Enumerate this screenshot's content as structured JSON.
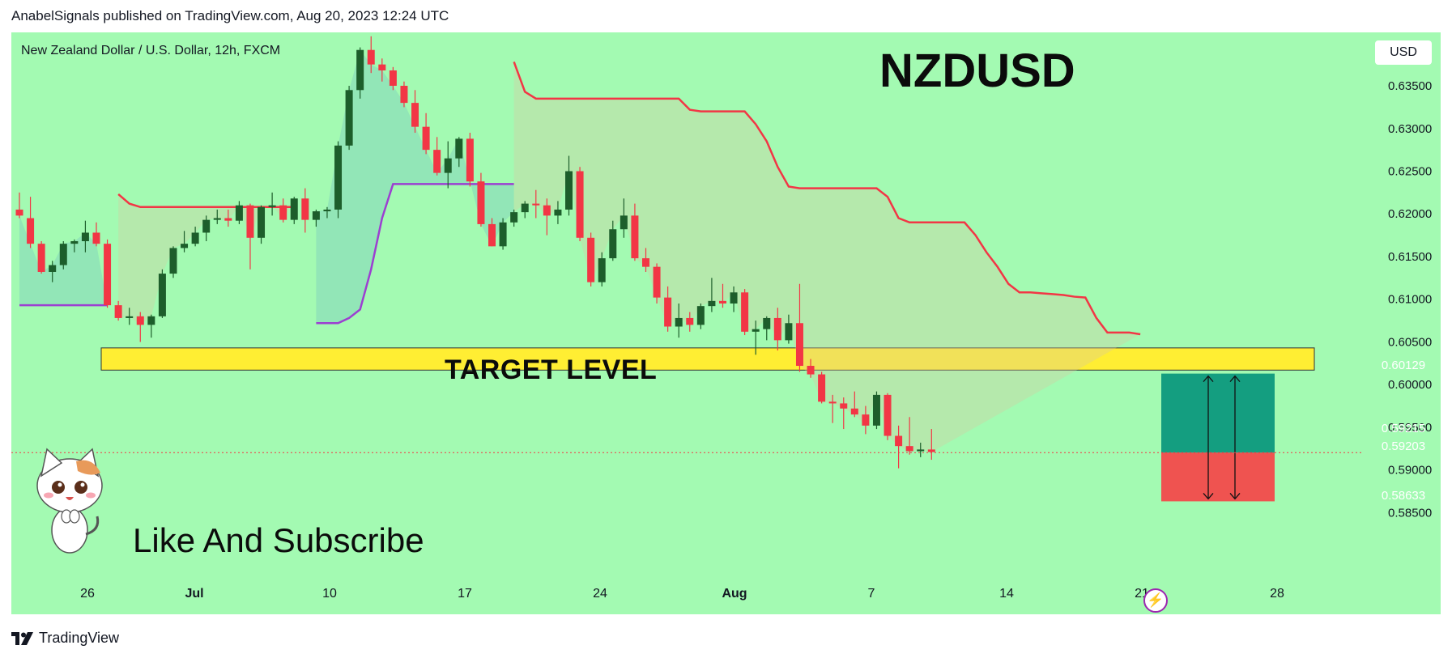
{
  "header": {
    "published": "AnabelSignals published on TradingView.com, Aug 20, 2023 12:24 UTC"
  },
  "footer": {
    "brand": "TradingView"
  },
  "overlay": {
    "symbol_description": "New Zealand Dollar / U.S. Dollar, 12h, FXCM",
    "ticker": "NZDUSD",
    "target_label": "TARGET LEVEL",
    "promo_text": "Like And Subscribe",
    "currency": "USD"
  },
  "colors": {
    "background": "#a3fab2",
    "bull": "#1d5e2b",
    "bear": "#f23645",
    "upper_band": "#f23645",
    "lower_band": "#9c3fd1",
    "target_zone": "#ffee33",
    "profit_zone": "#149e80",
    "loss_zone": "#ef5350"
  },
  "price_badges": [
    {
      "label": "0.60129",
      "color": "#089981"
    },
    {
      "label": "0.59215",
      "color": "#787b86"
    },
    {
      "label": "0.59203",
      "color": "#f23645"
    },
    {
      "label": "0.58633",
      "color": "#f23645"
    }
  ],
  "chart_data": {
    "type": "candlestick",
    "title": "NZDUSD",
    "subtitle": "New Zealand Dollar / U.S. Dollar, 12h, FXCM",
    "ylim": [
      0.584,
      0.6405
    ],
    "y_ticks": [
      "0.63500",
      "0.63000",
      "0.62500",
      "0.62000",
      "0.61500",
      "0.61000",
      "0.60500",
      "0.60000",
      "0.59500",
      "0.59000",
      "0.58500"
    ],
    "x_ticks": [
      "26",
      "Jul",
      "10",
      "17",
      "24",
      "Aug",
      "7",
      "14",
      "21",
      "28"
    ],
    "candles": [
      [
        0.6205,
        0.6225,
        0.6195,
        0.6198
      ],
      [
        0.6195,
        0.622,
        0.616,
        0.6165
      ],
      [
        0.6165,
        0.6168,
        0.613,
        0.6132
      ],
      [
        0.6132,
        0.6145,
        0.612,
        0.614
      ],
      [
        0.614,
        0.6168,
        0.6135,
        0.6165
      ],
      [
        0.6165,
        0.617,
        0.6155,
        0.6168
      ],
      [
        0.6168,
        0.6192,
        0.6155,
        0.6178
      ],
      [
        0.6178,
        0.619,
        0.6162,
        0.6165
      ],
      [
        0.6165,
        0.617,
        0.609,
        0.6093
      ],
      [
        0.6093,
        0.6098,
        0.6075,
        0.6078
      ],
      [
        0.6078,
        0.609,
        0.607,
        0.608
      ],
      [
        0.608,
        0.6085,
        0.605,
        0.607
      ],
      [
        0.607,
        0.6082,
        0.6055,
        0.608
      ],
      [
        0.608,
        0.6135,
        0.6078,
        0.613
      ],
      [
        0.613,
        0.6162,
        0.6125,
        0.616
      ],
      [
        0.616,
        0.618,
        0.6155,
        0.6165
      ],
      [
        0.6165,
        0.6185,
        0.6162,
        0.6178
      ],
      [
        0.6178,
        0.6198,
        0.6168,
        0.6193
      ],
      [
        0.6193,
        0.6205,
        0.6188,
        0.6195
      ],
      [
        0.6195,
        0.6205,
        0.6185,
        0.6192
      ],
      [
        0.6192,
        0.6215,
        0.6188,
        0.621
      ],
      [
        0.621,
        0.6212,
        0.6135,
        0.6172
      ],
      [
        0.6172,
        0.621,
        0.6165,
        0.6208
      ],
      [
        0.6208,
        0.6225,
        0.6198,
        0.621
      ],
      [
        0.621,
        0.6218,
        0.619,
        0.6193
      ],
      [
        0.6193,
        0.622,
        0.6188,
        0.6218
      ],
      [
        0.6218,
        0.623,
        0.6178,
        0.6193
      ],
      [
        0.6193,
        0.6205,
        0.6185,
        0.6203
      ],
      [
        0.6203,
        0.6208,
        0.6195,
        0.6205
      ],
      [
        0.6205,
        0.6285,
        0.6195,
        0.628
      ],
      [
        0.628,
        0.635,
        0.6275,
        0.6345
      ],
      [
        0.6345,
        0.6395,
        0.6335,
        0.6392
      ],
      [
        0.6392,
        0.6408,
        0.6365,
        0.6375
      ],
      [
        0.6375,
        0.6382,
        0.6355,
        0.6368
      ],
      [
        0.6368,
        0.6372,
        0.6345,
        0.635
      ],
      [
        0.635,
        0.6355,
        0.6325,
        0.633
      ],
      [
        0.633,
        0.6345,
        0.6295,
        0.6302
      ],
      [
        0.6302,
        0.6318,
        0.627,
        0.6275
      ],
      [
        0.6275,
        0.629,
        0.6245,
        0.6248
      ],
      [
        0.6248,
        0.6285,
        0.623,
        0.6265
      ],
      [
        0.6265,
        0.629,
        0.6255,
        0.6288
      ],
      [
        0.6288,
        0.6295,
        0.6232,
        0.6238
      ],
      [
        0.6238,
        0.6248,
        0.6185,
        0.6188
      ],
      [
        0.6188,
        0.6195,
        0.6162,
        0.6162
      ],
      [
        0.6162,
        0.6195,
        0.6158,
        0.619
      ],
      [
        0.619,
        0.6205,
        0.6185,
        0.6202
      ],
      [
        0.6202,
        0.6215,
        0.6195,
        0.6212
      ],
      [
        0.6212,
        0.6228,
        0.6195,
        0.621
      ],
      [
        0.621,
        0.6218,
        0.6175,
        0.6198
      ],
      [
        0.6198,
        0.6215,
        0.6188,
        0.6205
      ],
      [
        0.6205,
        0.6268,
        0.6198,
        0.625
      ],
      [
        0.625,
        0.6255,
        0.6168,
        0.6172
      ],
      [
        0.6172,
        0.6178,
        0.6115,
        0.612
      ],
      [
        0.612,
        0.6155,
        0.6115,
        0.6148
      ],
      [
        0.6148,
        0.6192,
        0.6145,
        0.6182
      ],
      [
        0.6182,
        0.6218,
        0.6172,
        0.6198
      ],
      [
        0.6198,
        0.6212,
        0.6145,
        0.6148
      ],
      [
        0.6148,
        0.616,
        0.6132,
        0.6138
      ],
      [
        0.6138,
        0.6142,
        0.6095,
        0.6102
      ],
      [
        0.6102,
        0.6115,
        0.6062,
        0.6068
      ],
      [
        0.6068,
        0.6095,
        0.6055,
        0.6078
      ],
      [
        0.6078,
        0.6085,
        0.6062,
        0.607
      ],
      [
        0.607,
        0.6095,
        0.6065,
        0.6092
      ],
      [
        0.6092,
        0.6125,
        0.6085,
        0.6098
      ],
      [
        0.6098,
        0.6118,
        0.609,
        0.6095
      ],
      [
        0.6095,
        0.6115,
        0.6085,
        0.6108
      ],
      [
        0.6108,
        0.6112,
        0.6058,
        0.6062
      ],
      [
        0.6062,
        0.6075,
        0.6035,
        0.6065
      ],
      [
        0.6065,
        0.608,
        0.6052,
        0.6078
      ],
      [
        0.6078,
        0.609,
        0.604,
        0.6052
      ],
      [
        0.6052,
        0.6082,
        0.6048,
        0.6072
      ],
      [
        0.6072,
        0.6118,
        0.6015,
        0.6022
      ],
      [
        0.6022,
        0.603,
        0.6008,
        0.6012
      ],
      [
        0.6012,
        0.6015,
        0.5978,
        0.598
      ],
      [
        0.598,
        0.5988,
        0.5955,
        0.5978
      ],
      [
        0.5978,
        0.5985,
        0.5948,
        0.5972
      ],
      [
        0.5972,
        0.5992,
        0.5962,
        0.5965
      ],
      [
        0.5965,
        0.5975,
        0.5942,
        0.5952
      ],
      [
        0.5952,
        0.5992,
        0.5948,
        0.5988
      ],
      [
        0.5988,
        0.599,
        0.5935,
        0.594
      ],
      [
        0.594,
        0.5952,
        0.5902,
        0.5928
      ],
      [
        0.5928,
        0.5962,
        0.5918,
        0.5922
      ],
      [
        0.5922,
        0.5932,
        0.5915,
        0.5924
      ],
      [
        0.5924,
        0.5948,
        0.5912,
        0.5921
      ]
    ],
    "upper_band": [
      {
        "segment": 1,
        "values": [
          0.6223,
          0.6212,
          0.6208,
          0.6208,
          0.6208,
          0.6208,
          0.6208,
          0.6208,
          0.6208,
          0.6208,
          0.6208,
          0.6208,
          0.6208,
          0.6208,
          0.6208,
          0.6208,
          0.6208
        ]
      },
      {
        "segment": 2,
        "values": [
          0.6378,
          0.6343,
          0.6335,
          0.6335,
          0.6335,
          0.6335,
          0.6335,
          0.6335,
          0.6335,
          0.6335,
          0.6335,
          0.6335,
          0.6335,
          0.6335,
          0.6335,
          0.6335,
          0.6322,
          0.632,
          0.632,
          0.632,
          0.632,
          0.632,
          0.6305,
          0.6285,
          0.6255,
          0.6232,
          0.623,
          0.623,
          0.623,
          0.623,
          0.623,
          0.623,
          0.623,
          0.623,
          0.622,
          0.6195,
          0.619,
          0.619,
          0.619,
          0.619,
          0.619,
          0.619,
          0.6175,
          0.6155,
          0.6138,
          0.6118,
          0.6108,
          0.6108,
          0.6107,
          0.6106,
          0.6105,
          0.6103,
          0.6102,
          0.6078,
          0.6061,
          0.6061,
          0.6061,
          0.6059
        ]
      }
    ],
    "lower_band": [
      {
        "segment": 1,
        "values": [
          0.6093,
          0.6093,
          0.6093,
          0.6093,
          0.6093,
          0.6093,
          0.6093,
          0.6093,
          0.6093
        ]
      },
      {
        "segment": 2,
        "values": [
          0.6072,
          0.6072,
          0.6072,
          0.6078,
          0.6088,
          0.6135,
          0.6195,
          0.6235,
          0.6235,
          0.6235,
          0.6235,
          0.6235,
          0.6235,
          0.6235,
          0.6235,
          0.6235,
          0.6235,
          0.6235,
          0.6235
        ]
      }
    ],
    "target_zone": [
      0.6017,
      0.6043
    ],
    "position": {
      "entry": 0.59203,
      "target": 0.60129,
      "stop": 0.58633
    },
    "last_price": 0.59203
  }
}
